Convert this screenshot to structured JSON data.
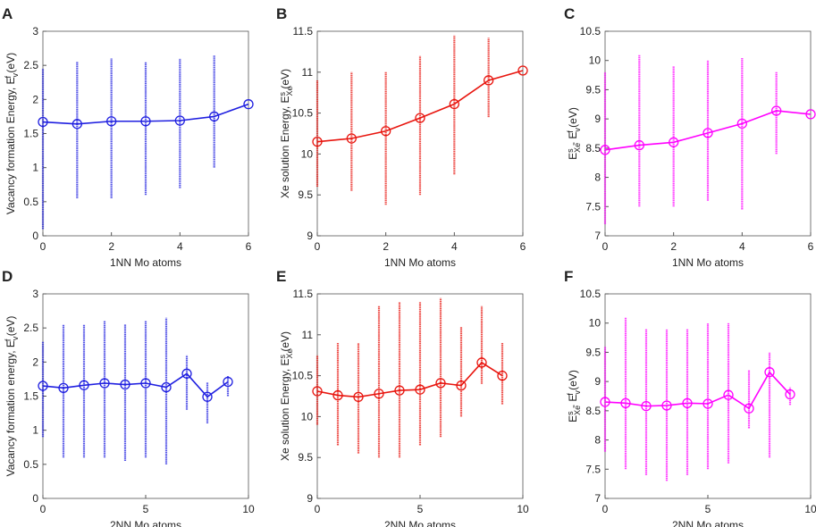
{
  "chart_data": [
    {
      "type": "line",
      "panel": "A",
      "color": "#1f1fe0",
      "ylabel": [
        {
          "text": "Vacancy formation Energy, E"
        },
        {
          "text": "v",
          "pos": "sub"
        },
        {
          "text": "f",
          "pos": "sup"
        },
        {
          "text": " (eV)"
        }
      ],
      "xlabel": "1NN Mo atoms",
      "x": [
        0,
        1,
        2,
        3,
        4,
        5,
        6
      ],
      "values": [
        1.67,
        1.64,
        1.68,
        1.68,
        1.69,
        1.75,
        1.93
      ],
      "spread": [
        [
          0.1,
          2.45
        ],
        [
          0.55,
          2.55
        ],
        [
          0.55,
          2.6
        ],
        [
          0.6,
          2.55
        ],
        [
          0.7,
          2.6
        ],
        [
          1.0,
          2.65
        ],
        null
      ],
      "xlim": [
        0,
        6
      ],
      "xticks": [
        0,
        2,
        4,
        6
      ],
      "ylim": [
        0,
        3
      ],
      "yticks": [
        0,
        0.5,
        1,
        1.5,
        2,
        2.5,
        3
      ]
    },
    {
      "type": "line",
      "panel": "B",
      "color": "#e8150e",
      "ylabel": [
        {
          "text": "Xe solution Energy, E"
        },
        {
          "text": "Xe",
          "pos": "sub"
        },
        {
          "text": "s",
          "pos": "sup"
        },
        {
          "text": " (eV)"
        }
      ],
      "xlabel": "1NN Mo atoms",
      "x": [
        0,
        1,
        2,
        3,
        4,
        5,
        6
      ],
      "values": [
        10.15,
        10.19,
        10.28,
        10.44,
        10.61,
        10.9,
        11.02
      ],
      "spread": [
        [
          9.6,
          10.9
        ],
        [
          9.55,
          11.0
        ],
        [
          9.38,
          11.0
        ],
        [
          9.5,
          11.2
        ],
        [
          9.75,
          11.45
        ],
        [
          10.45,
          11.42
        ],
        null
      ],
      "xlim": [
        0,
        6
      ],
      "xticks": [
        0,
        2,
        4,
        6
      ],
      "ylim": [
        9,
        11.5
      ],
      "yticks": [
        9,
        9.5,
        10,
        10.5,
        11,
        11.5
      ]
    },
    {
      "type": "line",
      "panel": "C",
      "color": "#ff00ff",
      "ylabel": [
        {
          "text": "E"
        },
        {
          "text": "Xe",
          "pos": "sub"
        },
        {
          "text": "s",
          "pos": "sup"
        },
        {
          "text": " - E"
        },
        {
          "text": "v",
          "pos": "sub"
        },
        {
          "text": "f",
          "pos": "sup"
        },
        {
          "text": " (eV)"
        }
      ],
      "xlabel": "1NN Mo atoms",
      "x": [
        0,
        1,
        2,
        3,
        4,
        5,
        6
      ],
      "values": [
        8.47,
        8.55,
        8.6,
        8.76,
        8.92,
        9.14,
        9.08
      ],
      "spread": [
        [
          7.2,
          9.8
        ],
        [
          7.5,
          10.1
        ],
        [
          7.5,
          9.9
        ],
        [
          7.6,
          10.0
        ],
        [
          7.45,
          10.05
        ],
        [
          8.4,
          9.8
        ],
        null
      ],
      "xlim": [
        0,
        6
      ],
      "xticks": [
        0,
        2,
        4,
        6
      ],
      "ylim": [
        7,
        10.5
      ],
      "yticks": [
        7,
        7.5,
        8,
        8.5,
        9,
        9.5,
        10,
        10.5
      ]
    },
    {
      "type": "line",
      "panel": "D",
      "color": "#1f1fe0",
      "ylabel": [
        {
          "text": "Vacancy formation energy, E"
        },
        {
          "text": "v",
          "pos": "sub"
        },
        {
          "text": "f",
          "pos": "sup"
        },
        {
          "text": " (eV)"
        }
      ],
      "xlabel": "2NN Mo atoms",
      "x": [
        0,
        1,
        2,
        3,
        4,
        5,
        6,
        7,
        8,
        9
      ],
      "values": [
        1.65,
        1.62,
        1.66,
        1.69,
        1.67,
        1.69,
        1.63,
        1.83,
        1.49,
        1.71
      ],
      "spread": [
        [
          0.9,
          2.3
        ],
        [
          0.6,
          2.55
        ],
        [
          0.6,
          2.55
        ],
        [
          0.6,
          2.6
        ],
        [
          0.55,
          2.55
        ],
        [
          0.6,
          2.6
        ],
        [
          0.5,
          2.65
        ],
        [
          1.3,
          2.1
        ],
        [
          1.1,
          1.7
        ],
        [
          1.5,
          1.8
        ]
      ],
      "xlim": [
        0,
        10
      ],
      "xticks": [
        0,
        5,
        10
      ],
      "ylim": [
        0,
        3
      ],
      "yticks": [
        0,
        0.5,
        1,
        1.5,
        2,
        2.5,
        3
      ]
    },
    {
      "type": "line",
      "panel": "E",
      "color": "#e8150e",
      "ylabel": [
        {
          "text": "Xe solution Energy, E"
        },
        {
          "text": "Xe",
          "pos": "sub"
        },
        {
          "text": "s",
          "pos": "sup"
        },
        {
          "text": " (eV)"
        }
      ],
      "xlabel": "2NN Mo atoms",
      "x": [
        0,
        1,
        2,
        3,
        4,
        5,
        6,
        7,
        8,
        9
      ],
      "values": [
        10.31,
        10.26,
        10.24,
        10.28,
        10.32,
        10.33,
        10.41,
        10.38,
        10.66,
        10.5
      ],
      "spread": [
        [
          9.9,
          10.75
        ],
        [
          9.65,
          10.9
        ],
        [
          9.55,
          10.9
        ],
        [
          9.5,
          11.35
        ],
        [
          9.5,
          11.4
        ],
        [
          9.65,
          11.4
        ],
        [
          9.75,
          11.45
        ],
        [
          10.0,
          11.1
        ],
        [
          10.4,
          11.35
        ],
        [
          10.15,
          10.9
        ]
      ],
      "xlim": [
        0,
        10
      ],
      "xticks": [
        0,
        5,
        10
      ],
      "ylim": [
        9,
        11.5
      ],
      "yticks": [
        9,
        9.5,
        10,
        10.5,
        11,
        11.5
      ]
    },
    {
      "type": "line",
      "panel": "F",
      "color": "#ff00ff",
      "ylabel": [
        {
          "text": "E"
        },
        {
          "text": "Xe",
          "pos": "sub"
        },
        {
          "text": "s",
          "pos": "sup"
        },
        {
          "text": " - E"
        },
        {
          "text": "v",
          "pos": "sub"
        },
        {
          "text": "f",
          "pos": "sup"
        },
        {
          "text": " (eV)"
        }
      ],
      "xlabel": "2NN Mo atoms",
      "x": [
        0,
        1,
        2,
        3,
        4,
        5,
        6,
        7,
        8,
        9
      ],
      "values": [
        8.65,
        8.63,
        8.58,
        8.59,
        8.63,
        8.62,
        8.77,
        8.54,
        9.16,
        8.78
      ],
      "spread": [
        [
          7.8,
          9.6
        ],
        [
          7.5,
          10.1
        ],
        [
          7.4,
          9.9
        ],
        [
          7.3,
          9.9
        ],
        [
          7.4,
          9.9
        ],
        [
          7.5,
          10.0
        ],
        [
          7.6,
          10.0
        ],
        [
          8.2,
          9.2
        ],
        [
          7.7,
          9.5
        ],
        [
          8.6,
          8.9
        ]
      ],
      "xlim": [
        0,
        10
      ],
      "xticks": [
        0,
        5,
        10
      ],
      "ylim": [
        7,
        10.5
      ],
      "yticks": [
        7,
        7.5,
        8,
        8.5,
        9,
        9.5,
        10,
        10.5
      ]
    }
  ]
}
